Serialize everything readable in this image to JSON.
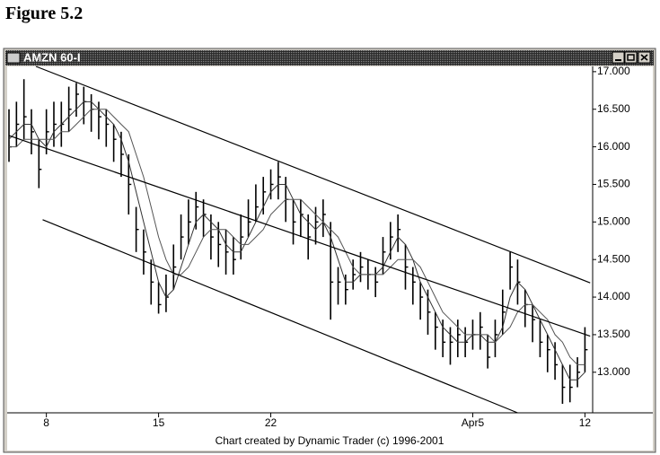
{
  "figure_label": "Figure 5.2",
  "chart_data": {
    "type": "ohlc",
    "window_title": "AMZN 60-I",
    "footer": "Chart created by Dynamic Trader (c) 1996-2001",
    "categories": [
      null,
      null,
      null,
      null,
      null,
      "8",
      null,
      null,
      null,
      null,
      null,
      null,
      null,
      null,
      null,
      null,
      null,
      null,
      null,
      null,
      "15",
      null,
      null,
      null,
      null,
      null,
      null,
      null,
      null,
      null,
      null,
      null,
      null,
      null,
      null,
      "22",
      null,
      null,
      null,
      null,
      null,
      null,
      null,
      null,
      null,
      null,
      null,
      null,
      null,
      null,
      null,
      null,
      null,
      null,
      null,
      null,
      null,
      null,
      null,
      null,
      null,
      null,
      "Apr5",
      null,
      null,
      null,
      null,
      null,
      null,
      null,
      null,
      null,
      null,
      null,
      null,
      null,
      null,
      "12"
    ],
    "high": [
      16.5,
      16.6,
      16.9,
      16.5,
      16.1,
      16.5,
      16.6,
      16.6,
      16.8,
      16.85,
      16.8,
      16.7,
      16.6,
      16.5,
      16.3,
      16.2,
      15.9,
      15.2,
      14.9,
      14.5,
      14.2,
      14.3,
      14.7,
      15.1,
      15.3,
      15.4,
      15.3,
      15.1,
      15.0,
      14.9,
      14.8,
      15.1,
      15.3,
      15.5,
      15.6,
      15.7,
      15.8,
      15.6,
      15.3,
      15.3,
      15.1,
      15.2,
      15.3,
      15.0,
      14.4,
      14.3,
      14.5,
      14.6,
      14.5,
      14.4,
      14.8,
      15.0,
      15.1,
      14.7,
      14.4,
      14.2,
      14.1,
      13.8,
      13.7,
      13.6,
      13.7,
      13.6,
      13.7,
      13.8,
      13.5,
      13.7,
      14.1,
      14.6,
      14.5,
      14.1,
      13.9,
      13.7,
      13.5,
      13.4,
      13.1,
      13.1,
      13.2,
      13.6
    ],
    "low": [
      15.8,
      16.0,
      16.1,
      15.9,
      15.45,
      15.9,
      16.0,
      16.0,
      16.2,
      16.4,
      16.3,
      16.2,
      16.1,
      16.0,
      15.8,
      15.6,
      15.1,
      14.6,
      14.3,
      13.9,
      13.78,
      13.8,
      14.1,
      14.5,
      14.7,
      14.9,
      14.8,
      14.5,
      14.4,
      14.3,
      14.3,
      14.5,
      14.8,
      15.0,
      15.1,
      15.3,
      15.3,
      15.0,
      14.7,
      14.8,
      14.5,
      14.7,
      14.8,
      13.7,
      13.9,
      13.9,
      14.1,
      14.2,
      14.1,
      14.0,
      14.3,
      14.5,
      14.6,
      14.1,
      13.9,
      13.7,
      13.5,
      13.3,
      13.2,
      13.1,
      13.2,
      13.2,
      13.3,
      13.3,
      13.05,
      13.2,
      13.5,
      14.1,
      13.9,
      13.6,
      13.4,
      13.2,
      13.0,
      12.9,
      12.58,
      12.6,
      12.8,
      13.0
    ],
    "close": [
      16.0,
      16.3,
      16.4,
      16.2,
      15.7,
      16.2,
      16.3,
      16.3,
      16.5,
      16.7,
      16.6,
      16.5,
      16.4,
      16.3,
      16.1,
      15.9,
      15.5,
      14.9,
      14.6,
      14.2,
      13.9,
      14.0,
      14.4,
      14.8,
      15.0,
      15.2,
      15.1,
      14.8,
      14.7,
      14.6,
      14.5,
      14.8,
      15.0,
      15.2,
      15.4,
      15.5,
      15.6,
      15.3,
      15.0,
      15.1,
      14.8,
      15.0,
      15.1,
      14.2,
      14.2,
      14.1,
      14.3,
      14.4,
      14.3,
      14.2,
      14.6,
      14.8,
      14.9,
      14.4,
      14.2,
      14.0,
      13.8,
      13.6,
      13.4,
      13.4,
      13.5,
      13.4,
      13.5,
      13.6,
      13.2,
      13.5,
      13.8,
      14.4,
      14.2,
      13.9,
      13.7,
      13.4,
      13.3,
      13.1,
      12.8,
      12.8,
      13.0,
      13.3
    ],
    "color": "#000000",
    "moving_averages": [
      {
        "color": "#333333",
        "values": [
          16.1,
          16.2,
          16.3,
          16.3,
          16.1,
          16.0,
          16.2,
          16.3,
          16.4,
          16.5,
          16.6,
          16.6,
          16.5,
          16.4,
          16.3,
          16.1,
          15.8,
          15.4,
          15.0,
          14.6,
          14.2,
          14.0,
          14.1,
          14.4,
          14.7,
          15.0,
          15.1,
          15.0,
          14.9,
          14.7,
          14.6,
          14.6,
          14.8,
          15.0,
          15.2,
          15.4,
          15.5,
          15.5,
          15.3,
          15.1,
          15.0,
          14.9,
          15.0,
          14.8,
          14.5,
          14.2,
          14.2,
          14.3,
          14.3,
          14.3,
          14.4,
          14.6,
          14.8,
          14.7,
          14.5,
          14.2,
          14.0,
          13.8,
          13.6,
          13.5,
          13.4,
          13.4,
          13.5,
          13.5,
          13.4,
          13.4,
          13.6,
          14.0,
          14.2,
          14.1,
          13.9,
          13.7,
          13.5,
          13.3,
          13.1,
          12.9,
          12.9,
          13.0
        ]
      },
      {
        "color": "#555555",
        "values": [
          16.0,
          16.0,
          16.1,
          16.1,
          16.1,
          16.1,
          16.1,
          16.2,
          16.2,
          16.3,
          16.4,
          16.5,
          16.5,
          16.5,
          16.4,
          16.3,
          16.2,
          15.9,
          15.6,
          15.2,
          14.8,
          14.5,
          14.3,
          14.3,
          14.4,
          14.6,
          14.8,
          14.9,
          14.9,
          14.9,
          14.8,
          14.7,
          14.7,
          14.8,
          14.9,
          15.1,
          15.2,
          15.3,
          15.3,
          15.3,
          15.2,
          15.1,
          15.0,
          14.9,
          14.8,
          14.6,
          14.4,
          14.3,
          14.3,
          14.3,
          14.3,
          14.4,
          14.5,
          14.5,
          14.5,
          14.4,
          14.2,
          14.0,
          13.8,
          13.7,
          13.6,
          13.5,
          13.5,
          13.5,
          13.5,
          13.4,
          13.5,
          13.6,
          13.8,
          13.9,
          13.9,
          13.8,
          13.7,
          13.5,
          13.4,
          13.2,
          13.1,
          13.1
        ]
      }
    ],
    "trendlines": [
      {
        "x": [
          3.6,
          77.7
        ],
        "y": [
          17.07,
          14.19
        ]
      },
      {
        "x": [
          0,
          77.7
        ],
        "y": [
          16.15,
          13.48
        ]
      },
      {
        "x": [
          4.5,
          68
        ],
        "y": [
          15.03,
          12.46
        ]
      }
    ],
    "ylim": [
      12.46,
      17.07
    ],
    "yticks": [
      {
        "value": 13,
        "label": "13.000"
      },
      {
        "value": 13.5,
        "label": "13.500"
      },
      {
        "value": 14,
        "label": "14.000"
      },
      {
        "value": 14.5,
        "label": "14.500"
      },
      {
        "value": 15,
        "label": "15.000"
      },
      {
        "value": 15.5,
        "label": "15.500"
      },
      {
        "value": 16,
        "label": "16.000"
      },
      {
        "value": 16.5,
        "label": "16.500"
      },
      {
        "value": 17,
        "label": "17.000"
      }
    ]
  }
}
